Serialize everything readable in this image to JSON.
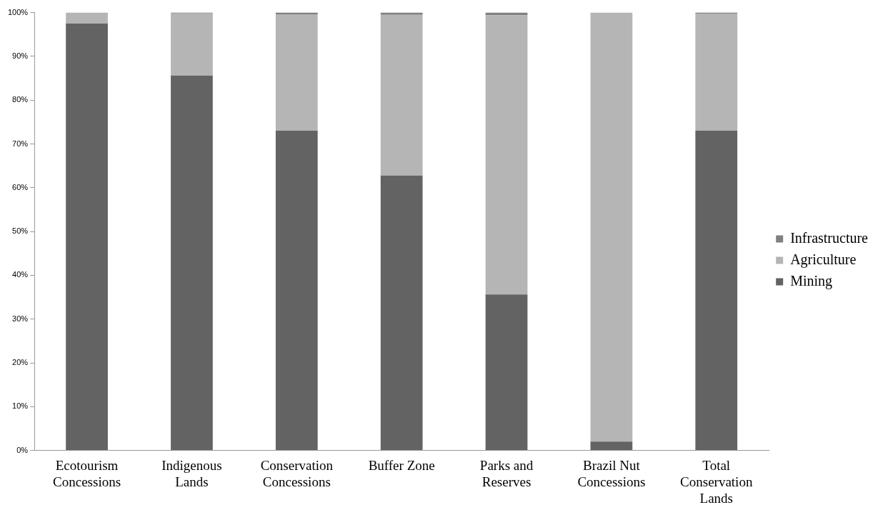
{
  "chart_data": {
    "type": "bar",
    "stacked": true,
    "categories": [
      "Ecotourism Concessions",
      "Indigenous Lands",
      "Conservation Concessions",
      "Buffer Zone",
      "Parks and Reserves",
      "Brazil Nut Concessions",
      "Total Conservation Lands"
    ],
    "series": [
      {
        "name": "Mining",
        "color": "#636363",
        "values": [
          97.5,
          85.6,
          73,
          62.8,
          35.6,
          2,
          73
        ]
      },
      {
        "name": "Agriculture",
        "color": "#b5b5b5",
        "values": [
          2.5,
          14.2,
          26.6,
          36.7,
          63.8,
          98,
          26.7
        ]
      },
      {
        "name": "Infrastructure",
        "color": "#808080",
        "values": [
          0,
          0.2,
          0.4,
          0.5,
          0.6,
          0,
          0.3
        ]
      }
    ],
    "ylim": [
      0,
      100
    ],
    "yticks": [
      {
        "value": 0,
        "label": "0%"
      },
      {
        "value": 10,
        "label": "10%"
      },
      {
        "value": 20,
        "label": "20%"
      },
      {
        "value": 30,
        "label": "30%"
      },
      {
        "value": 40,
        "label": "40%"
      },
      {
        "value": 50,
        "label": "50%"
      },
      {
        "value": 60,
        "label": "60%"
      },
      {
        "value": 70,
        "label": "70%"
      },
      {
        "value": 80,
        "label": "80%"
      },
      {
        "value": 90,
        "label": "90%"
      },
      {
        "value": 100,
        "label": "100%"
      }
    ],
    "grid": false,
    "legend": "right"
  }
}
